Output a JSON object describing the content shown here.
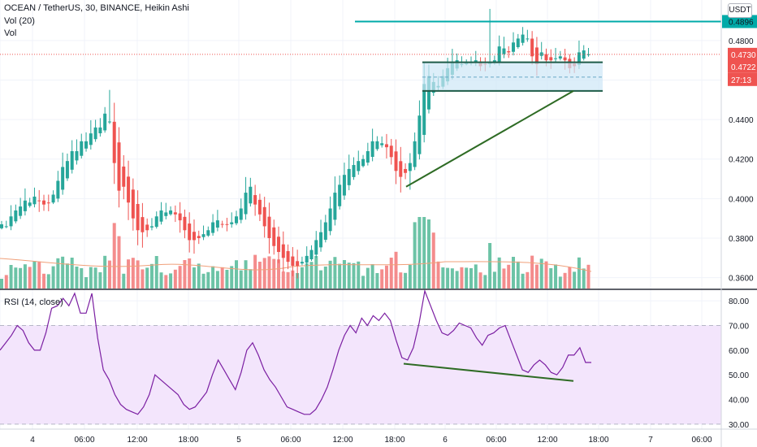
{
  "header": {
    "title": "OCEAN / TetherUS, 30, BINANCE, Heikin Ashi",
    "vol_label": "Vol (20)",
    "vol_label2": "Vol",
    "currency": "USDT"
  },
  "colors": {
    "up": "#26a69a",
    "down": "#ef5350",
    "up_vol": "#6cc3a6",
    "down_vol": "#f48c8c",
    "line": "#00aaa8",
    "trend": "#2e6b24",
    "rect_fill": "#cde7f7",
    "rect_line": "#1e5c48",
    "rsi": "#7b1fa2",
    "rsi_band": "#f3e5fc"
  },
  "chart_data": [
    {
      "type": "candlestick",
      "title": "OCEAN / TetherUS, 30, BINANCE, Heikin Ashi",
      "x_labels": [
        "4",
        "06:00",
        "12:00",
        "18:00",
        "5",
        "06:00",
        "12:00",
        "18:00",
        "6",
        "06:00",
        "12:00",
        "18:00",
        "7",
        "06:00"
      ],
      "y_ticks": [
        "0.4800",
        "0.4600",
        "0.4400",
        "0.4200",
        "0.4000",
        "0.3800",
        "0.3600"
      ],
      "ylim": [
        0.3545,
        0.5005
      ],
      "candles_close": [
        0.387,
        0.386,
        0.391,
        0.394,
        0.396,
        0.399,
        0.398,
        0.401,
        0.399,
        0.397,
        0.398,
        0.402,
        0.409,
        0.416,
        0.419,
        0.424,
        0.424,
        0.429,
        0.429,
        0.433,
        0.436,
        0.436,
        0.443,
        0.439,
        0.418,
        0.404,
        0.406,
        0.398,
        0.39,
        0.384,
        0.383,
        0.384,
        0.386,
        0.391,
        0.394,
        0.393,
        0.394,
        0.392,
        0.389,
        0.384,
        0.379,
        0.379,
        0.38,
        0.382,
        0.384,
        0.388,
        0.389,
        0.387,
        0.387,
        0.388,
        0.391,
        0.395,
        0.403,
        0.406,
        0.397,
        0.392,
        0.386,
        0.38,
        0.376,
        0.373,
        0.37,
        0.368,
        0.366,
        0.366,
        0.368,
        0.371,
        0.374,
        0.379,
        0.383,
        0.388,
        0.395,
        0.403,
        0.407,
        0.412,
        0.415,
        0.417,
        0.419,
        0.42,
        0.424,
        0.429,
        0.429,
        0.428,
        0.426,
        0.421,
        0.414,
        0.411,
        0.413,
        0.418,
        0.429,
        0.442,
        0.458,
        0.462,
        0.459,
        0.457,
        0.462,
        0.466,
        0.469,
        0.47,
        0.468,
        0.469,
        0.469,
        0.47,
        0.467,
        0.468,
        0.469,
        0.47,
        0.477,
        0.476,
        0.474,
        0.479,
        0.481,
        0.483,
        0.481,
        0.472,
        0.468,
        0.474,
        0.47,
        0.47,
        0.471,
        0.472,
        0.47,
        0.466,
        0.467,
        0.474,
        0.475,
        0.473
      ],
      "volume_panel": "Vol (20)",
      "horizontal_level": "0.4896",
      "price_labels": [
        "0.4730",
        "0.4722",
        "27:13"
      ],
      "annotations": [
        "horizontal line at 0.4896",
        "box range 0.4545 to 0.4690",
        "ascending trend line from 0.4060 to 0.4545"
      ]
    },
    {
      "type": "line",
      "title": "RSI (14, close)",
      "y_ticks": [
        "80.00",
        "70.00",
        "60.00",
        "50.00",
        "40.00",
        "30.00"
      ],
      "ylim": [
        28,
        84
      ],
      "band": [
        30,
        70
      ],
      "values": [
        60,
        63,
        66,
        70,
        68,
        63,
        60,
        60,
        67,
        77,
        78,
        81,
        78,
        83,
        75,
        75,
        83,
        65,
        52,
        48,
        42,
        38,
        36,
        35,
        34,
        37,
        42,
        50,
        48,
        46,
        44,
        42,
        38,
        36,
        37,
        40,
        43,
        50,
        56,
        52,
        48,
        44,
        51,
        60,
        63,
        58,
        52,
        48,
        45,
        41,
        37,
        36,
        35,
        34,
        34,
        36,
        40,
        45,
        52,
        60,
        66,
        70,
        67,
        73,
        70,
        74,
        72,
        75,
        72,
        64,
        57,
        56,
        61,
        71,
        84,
        78,
        72,
        67,
        66,
        68,
        71,
        70,
        69,
        65,
        62,
        66,
        67,
        69,
        70,
        64,
        58,
        52,
        51,
        54,
        56,
        54,
        51,
        50,
        53,
        58,
        58,
        61,
        55,
        55
      ],
      "annotations": [
        "declining line from 54.5 to 47.5"
      ]
    }
  ]
}
